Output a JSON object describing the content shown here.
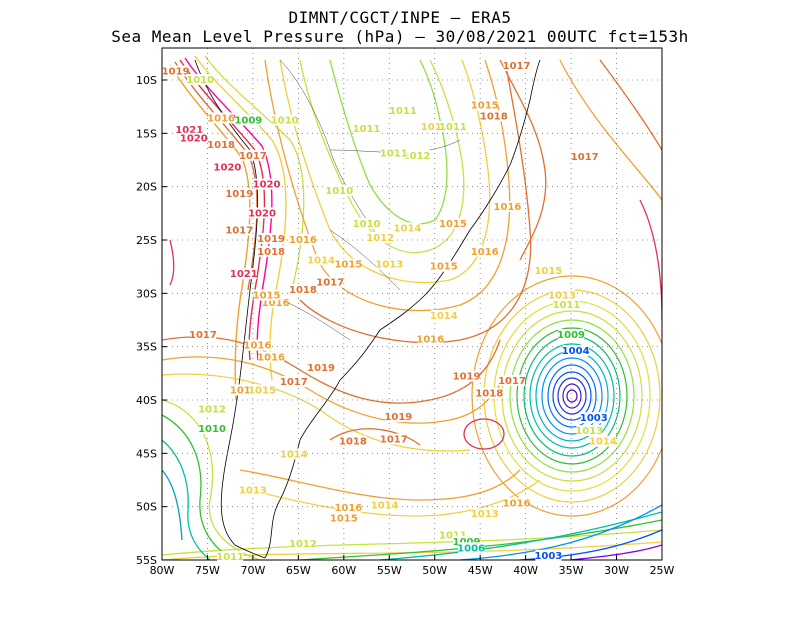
{
  "title": {
    "line1": "DIMNT/CGCT/INPE —  ERA5",
    "line2": "Sea Mean Level Pressure (hPa) — 30/08/2021 00UTC fct=153h"
  },
  "map": {
    "lon_range": [
      -80,
      -25
    ],
    "lat_range": [
      -55,
      -7
    ],
    "x_ticks": [
      "80W",
      "75W",
      "70W",
      "65W",
      "60W",
      "55W",
      "50W",
      "45W",
      "40W",
      "35W",
      "30W",
      "25W"
    ],
    "y_ticks": [
      "10S",
      "15S",
      "20S",
      "25S",
      "30S",
      "35S",
      "40S",
      "45S",
      "50S",
      "55S"
    ],
    "grid": "dotted",
    "colors": {
      "low": "#7a00ff",
      "1003": "#0050ff",
      "1008": "#00c0a0",
      "1010": "#30c030",
      "1012": "#c8e040",
      "1014": "#f0d040",
      "1016": "#f0a030",
      "1018": "#e07030",
      "1020": "#e03050",
      "high": "#ff00a0"
    },
    "contour_labels": [
      {
        "text": "1019",
        "lon": -78.5,
        "lat": -9.3,
        "color": "#e07030"
      },
      {
        "text": "1010",
        "lon": -75.8,
        "lat": -10.1,
        "color": "#c8e040"
      },
      {
        "text": "1016",
        "lon": -73.5,
        "lat": -13.7,
        "color": "#f0a030"
      },
      {
        "text": "1009",
        "lon": -70.5,
        "lat": -13.9,
        "color": "#30c030"
      },
      {
        "text": "1021",
        "lon": -77.0,
        "lat": -14.8,
        "color": "#e03050"
      },
      {
        "text": "1020",
        "lon": -76.5,
        "lat": -15.6,
        "color": "#e03050"
      },
      {
        "text": "1018",
        "lon": -73.5,
        "lat": -16.2,
        "color": "#e07030"
      },
      {
        "text": "1017",
        "lon": -70.0,
        "lat": -17.2,
        "color": "#e07030"
      },
      {
        "text": "1020",
        "lon": -72.8,
        "lat": -18.3,
        "color": "#e03050"
      },
      {
        "text": "1020",
        "lon": -68.5,
        "lat": -19.9,
        "color": "#e03050"
      },
      {
        "text": "1019",
        "lon": -71.5,
        "lat": -20.8,
        "color": "#e07030"
      },
      {
        "text": "1020",
        "lon": -69.0,
        "lat": -22.6,
        "color": "#e03050"
      },
      {
        "text": "1017",
        "lon": -71.5,
        "lat": -24.2,
        "color": "#e07030"
      },
      {
        "text": "1019",
        "lon": -68.0,
        "lat": -25.0,
        "color": "#e07030"
      },
      {
        "text": "1018",
        "lon": -68.0,
        "lat": -26.2,
        "color": "#e07030"
      },
      {
        "text": "1021",
        "lon": -71.0,
        "lat": -28.3,
        "color": "#e03050"
      },
      {
        "text": "1010",
        "lon": -66.5,
        "lat": -13.9,
        "color": "#c8e040"
      },
      {
        "text": "1011",
        "lon": -57.5,
        "lat": -14.7,
        "color": "#c8e040"
      },
      {
        "text": "1011",
        "lon": -53.5,
        "lat": -13.0,
        "color": "#c8e040"
      },
      {
        "text": "1012",
        "lon": -52.0,
        "lat": -17.2,
        "color": "#c8e040"
      },
      {
        "text": "1011",
        "lon": -54.5,
        "lat": -17.0,
        "color": "#c8e040"
      },
      {
        "text": "1010",
        "lon": -60.5,
        "lat": -20.5,
        "color": "#c8e040"
      },
      {
        "text": "1010",
        "lon": -57.5,
        "lat": -23.6,
        "color": "#c8e040"
      },
      {
        "text": "1012",
        "lon": -56.0,
        "lat": -24.9,
        "color": "#f0d040"
      },
      {
        "text": "1014",
        "lon": -53.0,
        "lat": -24.0,
        "color": "#f0d040"
      },
      {
        "text": "1015",
        "lon": -48.0,
        "lat": -23.6,
        "color": "#f0a030"
      },
      {
        "text": "1014",
        "lon": -50.0,
        "lat": -14.5,
        "color": "#f0d040"
      },
      {
        "text": "1011",
        "lon": -48.0,
        "lat": -14.5,
        "color": "#c8e040"
      },
      {
        "text": "1015",
        "lon": -44.5,
        "lat": -12.5,
        "color": "#f0a030"
      },
      {
        "text": "1018",
        "lon": -43.5,
        "lat": -13.5,
        "color": "#e07030"
      },
      {
        "text": "1017",
        "lon": -41.0,
        "lat": -8.8,
        "color": "#e07030"
      },
      {
        "text": "1017",
        "lon": -33.5,
        "lat": -17.3,
        "color": "#e07030"
      },
      {
        "text": "1016",
        "lon": -42.0,
        "lat": -22.0,
        "color": "#f0a030"
      },
      {
        "text": "1016",
        "lon": -44.5,
        "lat": -26.2,
        "color": "#f0a030"
      },
      {
        "text": "1015",
        "lon": -49.0,
        "lat": -27.6,
        "color": "#f0a030"
      },
      {
        "text": "1015",
        "lon": -59.5,
        "lat": -27.4,
        "color": "#f0a030"
      },
      {
        "text": "1013",
        "lon": -55.0,
        "lat": -27.4,
        "color": "#f0d040"
      },
      {
        "text": "1014",
        "lon": -62.5,
        "lat": -27.0,
        "color": "#f0d040"
      },
      {
        "text": "1016",
        "lon": -64.5,
        "lat": -25.1,
        "color": "#f0a030"
      },
      {
        "text": "1017",
        "lon": -61.5,
        "lat": -29.1,
        "color": "#e07030"
      },
      {
        "text": "1018",
        "lon": -64.5,
        "lat": -29.8,
        "color": "#e07030"
      },
      {
        "text": "1016",
        "lon": -67.5,
        "lat": -31.0,
        "color": "#f0a030"
      },
      {
        "text": "1015",
        "lon": -68.5,
        "lat": -30.3,
        "color": "#f0a030"
      },
      {
        "text": "1014",
        "lon": -49.0,
        "lat": -32.2,
        "color": "#f0d040"
      },
      {
        "text": "1016",
        "lon": -50.5,
        "lat": -34.4,
        "color": "#f0a030"
      },
      {
        "text": "1015",
        "lon": -37.5,
        "lat": -28.0,
        "color": "#f0d040"
      },
      {
        "text": "1013",
        "lon": -36.0,
        "lat": -30.3,
        "color": "#f0d040"
      },
      {
        "text": "1011",
        "lon": -35.5,
        "lat": -31.2,
        "color": "#c8e040"
      },
      {
        "text": "1009",
        "lon": -35.0,
        "lat": -34.0,
        "color": "#30c030"
      },
      {
        "text": "1004",
        "lon": -34.5,
        "lat": -35.5,
        "color": "#0050ff"
      },
      {
        "text": "1003",
        "lon": -32.5,
        "lat": -41.8,
        "color": "#0050ff"
      },
      {
        "text": "1013",
        "lon": -33.0,
        "lat": -43.0,
        "color": "#c8e040"
      },
      {
        "text": "1014",
        "lon": -31.5,
        "lat": -44.0,
        "color": "#f0d040"
      },
      {
        "text": "1017",
        "lon": -75.5,
        "lat": -34.0,
        "color": "#e07030"
      },
      {
        "text": "1016",
        "lon": -69.5,
        "lat": -35.0,
        "color": "#f0a030"
      },
      {
        "text": "1016",
        "lon": -68.0,
        "lat": -36.1,
        "color": "#f0a030"
      },
      {
        "text": "1019",
        "lon": -62.5,
        "lat": -37.1,
        "color": "#e07030"
      },
      {
        "text": "1017",
        "lon": -65.5,
        "lat": -38.4,
        "color": "#e07030"
      },
      {
        "text": "1016",
        "lon": -71.0,
        "lat": -39.2,
        "color": "#f0a030"
      },
      {
        "text": "1015",
        "lon": -69.0,
        "lat": -39.2,
        "color": "#f0d040"
      },
      {
        "text": "1019",
        "lon": -46.5,
        "lat": -37.9,
        "color": "#e07030"
      },
      {
        "text": "1017",
        "lon": -41.5,
        "lat": -38.3,
        "color": "#e07030"
      },
      {
        "text": "1018",
        "lon": -44.0,
        "lat": -39.5,
        "color": "#e07030"
      },
      {
        "text": "1019",
        "lon": -54.0,
        "lat": -41.7,
        "color": "#e07030"
      },
      {
        "text": "1017",
        "lon": -54.5,
        "lat": -43.8,
        "color": "#e07030"
      },
      {
        "text": "1018",
        "lon": -59.0,
        "lat": -44.0,
        "color": "#e07030"
      },
      {
        "text": "1012",
        "lon": -74.5,
        "lat": -41.0,
        "color": "#c8e040"
      },
      {
        "text": "1010",
        "lon": -74.5,
        "lat": -42.8,
        "color": "#30c030"
      },
      {
        "text": "1014",
        "lon": -65.5,
        "lat": -45.2,
        "color": "#f0d040"
      },
      {
        "text": "1013",
        "lon": -70.0,
        "lat": -48.6,
        "color": "#f0d040"
      },
      {
        "text": "1016",
        "lon": -59.5,
        "lat": -50.2,
        "color": "#f0a030"
      },
      {
        "text": "1015",
        "lon": -60.0,
        "lat": -51.2,
        "color": "#f0a030"
      },
      {
        "text": "1014",
        "lon": -55.5,
        "lat": -50.0,
        "color": "#f0d040"
      },
      {
        "text": "1016",
        "lon": -41.0,
        "lat": -49.8,
        "color": "#f0a030"
      },
      {
        "text": "1013",
        "lon": -44.5,
        "lat": -50.8,
        "color": "#f0d040"
      },
      {
        "text": "1012",
        "lon": -64.5,
        "lat": -53.6,
        "color": "#c8e040"
      },
      {
        "text": "1011",
        "lon": -48.0,
        "lat": -52.8,
        "color": "#c8e040"
      },
      {
        "text": "1009",
        "lon": -46.5,
        "lat": -53.4,
        "color": "#30c030"
      },
      {
        "text": "1006",
        "lon": -46.0,
        "lat": -54.0,
        "color": "#00c0a0"
      },
      {
        "text": "1003",
        "lon": -37.5,
        "lat": -54.7,
        "color": "#0050ff"
      },
      {
        "text": "1011",
        "lon": -72.5,
        "lat": -54.8,
        "color": "#c8e040"
      }
    ]
  }
}
